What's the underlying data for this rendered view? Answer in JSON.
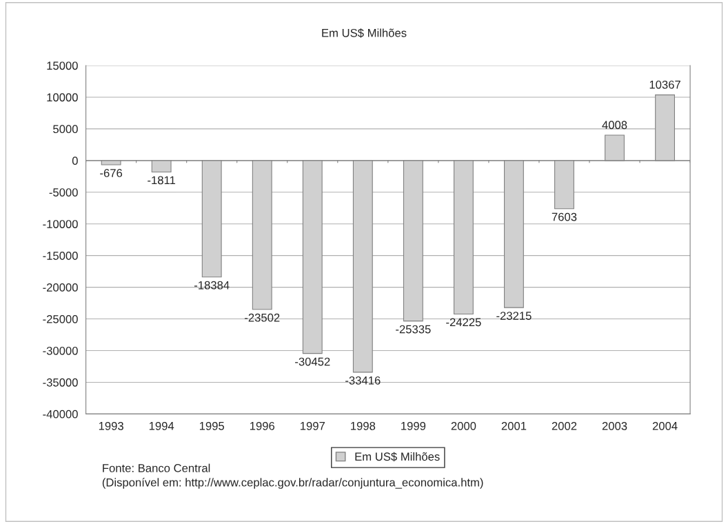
{
  "chart_data": {
    "type": "bar",
    "title": "Em US$ Milhões",
    "categories": [
      "1993",
      "1994",
      "1995",
      "1996",
      "1997",
      "1998",
      "1999",
      "2000",
      "2001",
      "2002",
      "2003",
      "2004"
    ],
    "series": [
      {
        "name": "Em US$ Milhões",
        "color": "#d0d0d0",
        "values": [
          -676,
          -1811,
          -18384,
          -23502,
          -30452,
          -33416,
          -25335,
          -24225,
          -23215,
          -7603,
          4008,
          10367
        ]
      }
    ],
    "value_labels": [
      "-676",
      "-1811",
      "-18384",
      "-23502",
      "-30452",
      "-33416",
      "-25335",
      "-24225",
      "-23215",
      "7603",
      "4008",
      "10367"
    ],
    "ylim": [
      -40000,
      15000
    ],
    "yticks": [
      -40000,
      -35000,
      -30000,
      -25000,
      -20000,
      -15000,
      -10000,
      -5000,
      0,
      5000,
      10000,
      15000
    ],
    "grid": "y",
    "legend": "bottom",
    "annotations": [
      "Fonte: Banco Central",
      "(Disponível em: http://www.ceplac.gov.br/radar/conjuntura_economica.htm)"
    ]
  }
}
